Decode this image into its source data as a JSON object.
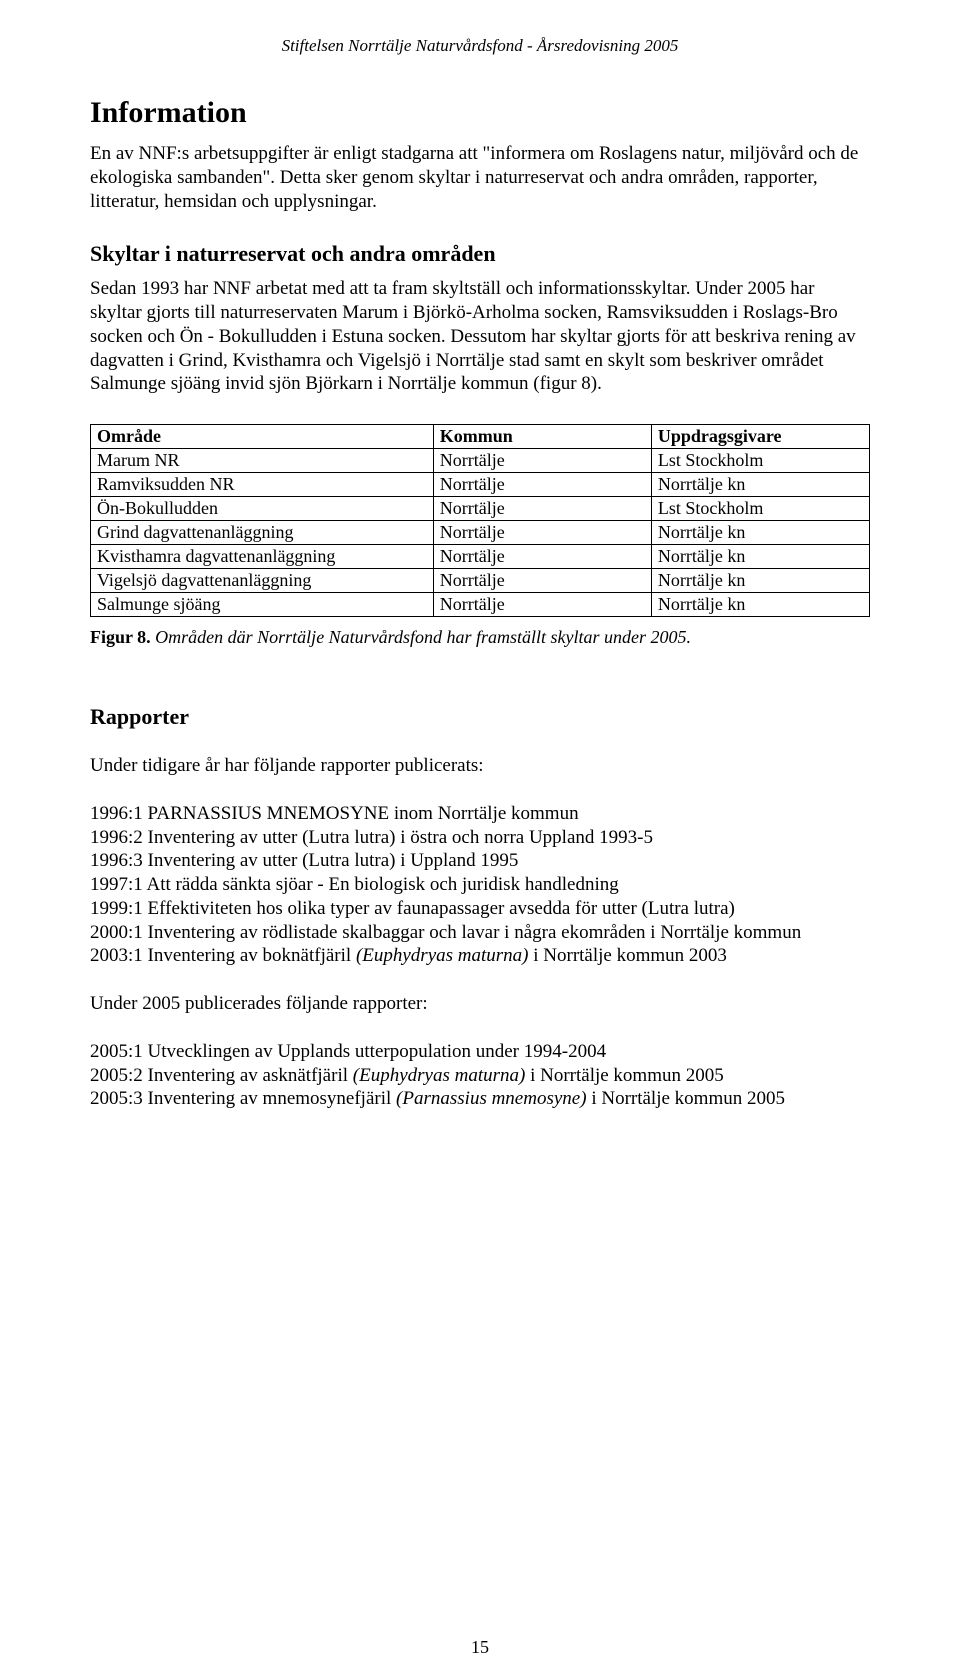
{
  "running_header": "Stiftelsen Norrtälje Naturvårdsfond - Årsredovisning 2005",
  "h1": "Information",
  "intro_para": "En av NNF:s arbetsuppgifter är enligt stadgarna att \"informera om Roslagens natur, miljövård och de ekologiska sambanden\". Detta sker genom skyltar i naturreservat och andra områden, rapporter, litteratur, hemsidan och upplysningar.",
  "skyltar_h2": "Skyltar i naturreservat och andra områden",
  "skyltar_para": "Sedan 1993 har NNF arbetat med att ta fram skyltställ och informationsskyltar. Under 2005 har skyltar gjorts till naturreservaten Marum i Björkö-Arholma socken, Ramsviksudden i Roslags-Bro socken och Ön - Bokulludden i Estuna socken. Dessutom har skyltar gjorts för att beskriva rening av dagvatten i Grind, Kvisthamra och Vigelsjö i Norrtälje stad samt en skylt som beskriver området Salmunge sjöäng invid sjön Björkarn i Norrtälje kommun (figur 8).",
  "table": {
    "columns": [
      "Område",
      "Kommun",
      "Uppdragsgivare"
    ],
    "col_widths": [
      "44%",
      "28%",
      "28%"
    ],
    "rows": [
      [
        "Marum NR",
        "Norrtälje",
        "Lst Stockholm"
      ],
      [
        "Ramviksudden NR",
        "Norrtälje",
        "Norrtälje kn"
      ],
      [
        "Ön-Bokulludden",
        "Norrtälje",
        "Lst Stockholm"
      ],
      [
        "Grind dagvattenanläggning",
        "Norrtälje",
        "Norrtälje kn"
      ],
      [
        "Kvisthamra dagvattenanläggning",
        "Norrtälje",
        "Norrtälje kn"
      ],
      [
        "Vigelsjö dagvattenanläggning",
        "Norrtälje",
        "Norrtälje kn"
      ],
      [
        "Salmunge sjöäng",
        "Norrtälje",
        "Norrtälje kn"
      ]
    ]
  },
  "caption_bold": "Figur 8.",
  "caption_ital": " Områden där Norrtälje Naturvårdsfond har framställt skyltar under 2005.",
  "rapporter_h2": "Rapporter",
  "rapporter_intro": "Under tidigare år har följande rapporter publicerats:",
  "rapporter_list1": [
    {
      "text": "1996:1 PARNASSIUS MNEMOSYNE inom Norrtälje kommun"
    },
    {
      "text": "1996:2 Inventering av utter (Lutra lutra) i östra och norra Uppland 1993-5"
    },
    {
      "text": "1996:3 Inventering av utter (Lutra lutra) i Uppland 1995"
    },
    {
      "text": "1997:1 Att rädda sänkta sjöar - En biologisk och juridisk handledning"
    },
    {
      "text": "1999:1 Effektiviteten hos olika typer av faunapassager avsedda för utter (Lutra lutra)"
    },
    {
      "text": "2000:1 Inventering av rödlistade skalbaggar och lavar i några ekområden i Norrtälje kommun"
    },
    {
      "pre": "2003:1 Inventering av boknätfjäril ",
      "ital": "(Euphydryas maturna)",
      "post": " i Norrtälje kommun 2003"
    }
  ],
  "rapporter_intro2": "Under 2005 publicerades följande rapporter:",
  "rapporter_list2": [
    {
      "text": "2005:1 Utvecklingen av Upplands utterpopulation under 1994-2004"
    },
    {
      "pre": "2005:2 Inventering av asknätfjäril ",
      "ital": "(Euphydryas maturna)",
      "post": " i Norrtälje kommun 2005"
    },
    {
      "pre": "2005:3 Inventering av mnemosynefjäril ",
      "ital": "(Parnassius mnemosyne)",
      "post": " i Norrtälje kommun 2005"
    }
  ],
  "page_number": "15"
}
